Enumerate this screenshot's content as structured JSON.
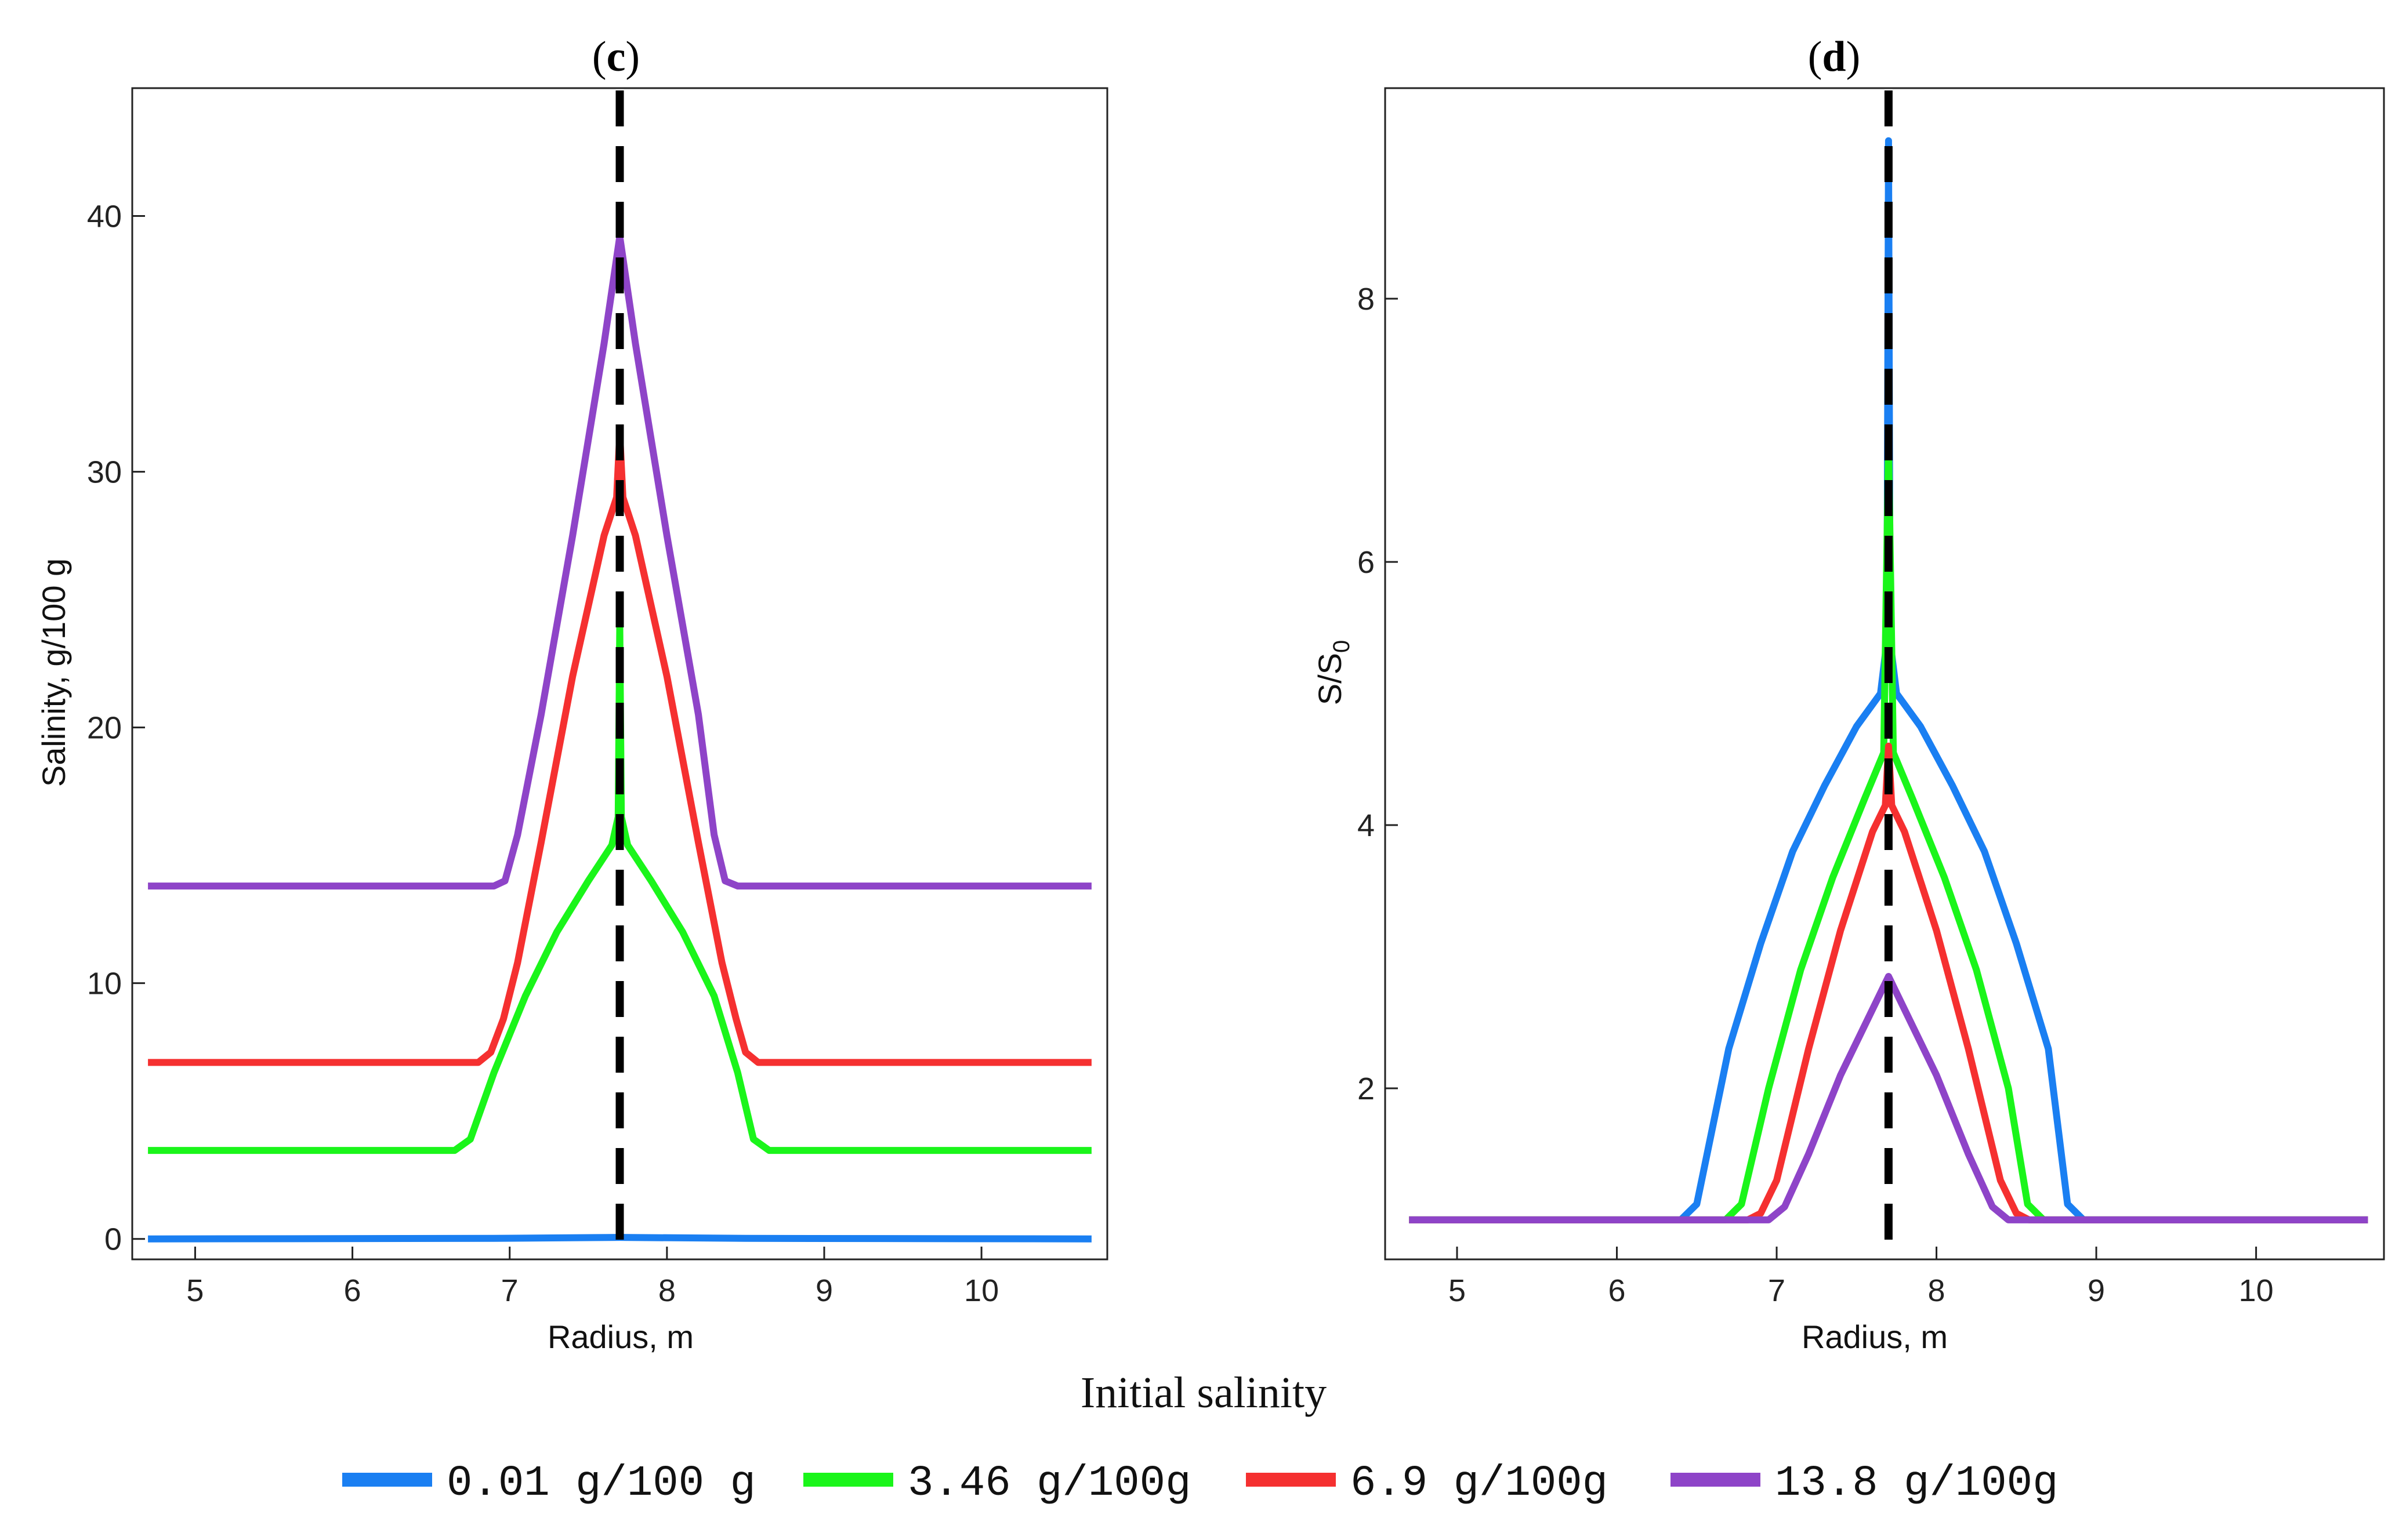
{
  "chart_data": [
    {
      "type": "line",
      "panel": "(c)",
      "panel_letter": "c",
      "xlabel": "Radius, m",
      "ylabel": "Salinity, g/100 g",
      "xlim": [
        4.6,
        10.8
      ],
      "ylim": [
        -0.8,
        45
      ],
      "xticks": [
        5,
        6,
        7,
        8,
        9,
        10
      ],
      "yticks": [
        0,
        10,
        20,
        30,
        40
      ],
      "reference_line": {
        "x": 7.7,
        "style": "dashed",
        "color": "#000000"
      },
      "series": [
        {
          "name": "0.01 g/100 g",
          "color": "#1A7FF2",
          "x": [
            4.7,
            6.9,
            7.7,
            8.5,
            10.7
          ],
          "y": [
            0.0,
            0.02,
            0.06,
            0.02,
            0.0
          ]
        },
        {
          "name": "3.46 g/100g",
          "color": "#1AF51A",
          "x": [
            4.7,
            6.65,
            6.75,
            6.9,
            7.1,
            7.3,
            7.5,
            7.65,
            7.69,
            7.7,
            7.71,
            7.75,
            7.9,
            8.1,
            8.3,
            8.45,
            8.55,
            8.65,
            10.7
          ],
          "y": [
            3.46,
            3.46,
            3.9,
            6.5,
            9.5,
            12.0,
            14.0,
            15.4,
            16.5,
            24.0,
            16.5,
            15.4,
            14.0,
            12.0,
            9.5,
            6.5,
            3.9,
            3.46,
            3.46
          ]
        },
        {
          "name": "6.9 g/100g",
          "color": "#F53030",
          "x": [
            4.7,
            6.8,
            6.88,
            6.96,
            7.05,
            7.2,
            7.4,
            7.6,
            7.68,
            7.7,
            7.72,
            7.8,
            8.0,
            8.2,
            8.35,
            8.44,
            8.5,
            8.58,
            10.7
          ],
          "y": [
            6.9,
            6.9,
            7.3,
            8.6,
            10.8,
            15.5,
            22.0,
            27.5,
            29.0,
            31.5,
            29.0,
            27.5,
            22.0,
            15.5,
            10.8,
            8.6,
            7.3,
            6.9,
            6.9
          ]
        },
        {
          "name": "13.8 g/100g",
          "color": "#8E44C8",
          "x": [
            4.7,
            6.9,
            6.97,
            7.05,
            7.2,
            7.4,
            7.6,
            7.7,
            7.8,
            8.0,
            8.2,
            8.3,
            8.37,
            8.45,
            10.7
          ],
          "y": [
            13.8,
            13.8,
            14.0,
            15.8,
            20.5,
            27.5,
            35.0,
            39.2,
            35.0,
            27.5,
            20.5,
            15.8,
            14.0,
            13.8,
            13.8
          ]
        }
      ]
    },
    {
      "type": "line",
      "panel": "(d)",
      "panel_letter": "d",
      "xlabel": "Radius, m",
      "ylabel_main": "S/S",
      "ylabel_sub": "0",
      "xlim": [
        4.55,
        10.8
      ],
      "ylim": [
        0.7,
        9.6
      ],
      "xticks": [
        5,
        6,
        7,
        8,
        9,
        10
      ],
      "yticks": [
        2,
        4,
        6,
        8
      ],
      "reference_line": {
        "x": 7.7,
        "style": "dashed",
        "color": "#000000"
      },
      "series": [
        {
          "name": "0.01 g/100 g",
          "color": "#1A7FF2",
          "x": [
            4.7,
            6.4,
            6.5,
            6.7,
            6.9,
            7.1,
            7.3,
            7.5,
            7.65,
            7.69,
            7.7,
            7.71,
            7.75,
            7.9,
            8.1,
            8.3,
            8.5,
            8.7,
            8.82,
            8.92,
            10.7
          ],
          "y": [
            1.0,
            1.0,
            1.12,
            2.3,
            3.1,
            3.8,
            4.3,
            4.75,
            5.0,
            5.4,
            9.2,
            5.4,
            5.0,
            4.75,
            4.3,
            3.8,
            3.1,
            2.3,
            1.12,
            1.0,
            1.0
          ]
        },
        {
          "name": "3.46 g/100g",
          "color": "#1AF51A",
          "x": [
            4.7,
            6.68,
            6.78,
            6.95,
            7.15,
            7.35,
            7.55,
            7.67,
            7.7,
            7.73,
            7.85,
            8.05,
            8.25,
            8.45,
            8.57,
            8.67,
            10.7
          ],
          "y": [
            1.0,
            1.0,
            1.12,
            2.0,
            2.9,
            3.6,
            4.2,
            4.55,
            6.9,
            4.55,
            4.2,
            3.6,
            2.9,
            2.0,
            1.12,
            1.0,
            1.0
          ]
        },
        {
          "name": "6.9 g/100g",
          "color": "#F53030",
          "x": [
            4.7,
            6.82,
            6.9,
            7.0,
            7.2,
            7.4,
            7.6,
            7.68,
            7.7,
            7.72,
            7.8,
            8.0,
            8.2,
            8.4,
            8.5,
            8.58,
            10.7
          ],
          "y": [
            1.0,
            1.0,
            1.05,
            1.3,
            2.3,
            3.2,
            3.95,
            4.15,
            4.6,
            4.15,
            3.95,
            3.2,
            2.3,
            1.3,
            1.05,
            1.0,
            1.0
          ]
        },
        {
          "name": "13.8 g/100g",
          "color": "#8E44C8",
          "x": [
            4.7,
            6.95,
            7.05,
            7.2,
            7.4,
            7.6,
            7.7,
            7.8,
            8.0,
            8.2,
            8.35,
            8.45,
            10.7
          ],
          "y": [
            1.0,
            1.0,
            1.1,
            1.5,
            2.1,
            2.6,
            2.85,
            2.6,
            2.1,
            1.5,
            1.1,
            1.0,
            1.0
          ]
        }
      ]
    }
  ],
  "legend": {
    "title": "Initial salinity",
    "entries": [
      {
        "label": "0.01 g/100 g",
        "color": "#1A7FF2"
      },
      {
        "label": "3.46 g/100g",
        "color": "#1AF51A"
      },
      {
        "label": "6.9 g/100g",
        "color": "#F53030"
      },
      {
        "label": "13.8 g/100g",
        "color": "#8E44C8"
      }
    ]
  }
}
